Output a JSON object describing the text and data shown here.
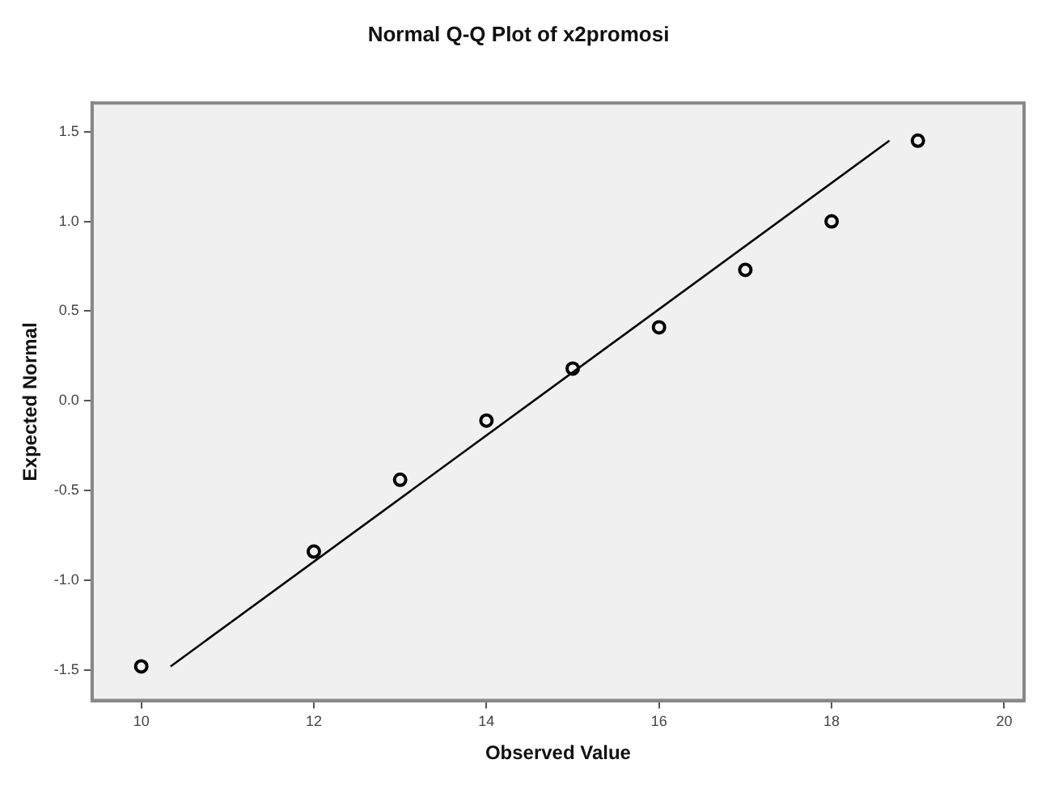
{
  "chart_data": {
    "type": "scatter",
    "title": "Normal Q-Q Plot of x2promosi",
    "xlabel": "Observed Value",
    "ylabel": "Expected Normal",
    "xlim": [
      9.43,
      20.23
    ],
    "xticks": [
      10,
      12,
      14,
      16,
      18,
      20
    ],
    "ylim": [
      -1.67,
      1.66
    ],
    "yticks": [
      -1.5,
      {
        "value": -1,
        "label": "-1.0"
      },
      -0.5,
      {
        "value": 0,
        "label": "0.0"
      },
      0.5,
      {
        "value": 1,
        "label": "1.0"
      },
      1.5
    ],
    "grid": false,
    "legend": false,
    "marker": "circle",
    "series": [
      {
        "type": "scatter",
        "color": "#000000",
        "x": [
          10,
          12,
          13,
          14,
          15,
          16,
          17,
          18,
          19
        ],
        "values": [
          -1.48,
          -0.84,
          -0.44,
          -0.11,
          0.18,
          0.41,
          0.73,
          1.0,
          1.45
        ]
      },
      {
        "type": "line",
        "color": "#000000",
        "line_style": "solid",
        "marker": "none",
        "x": [
          10.34,
          18.67
        ],
        "values": [
          -1.48,
          1.45
        ]
      }
    ]
  }
}
